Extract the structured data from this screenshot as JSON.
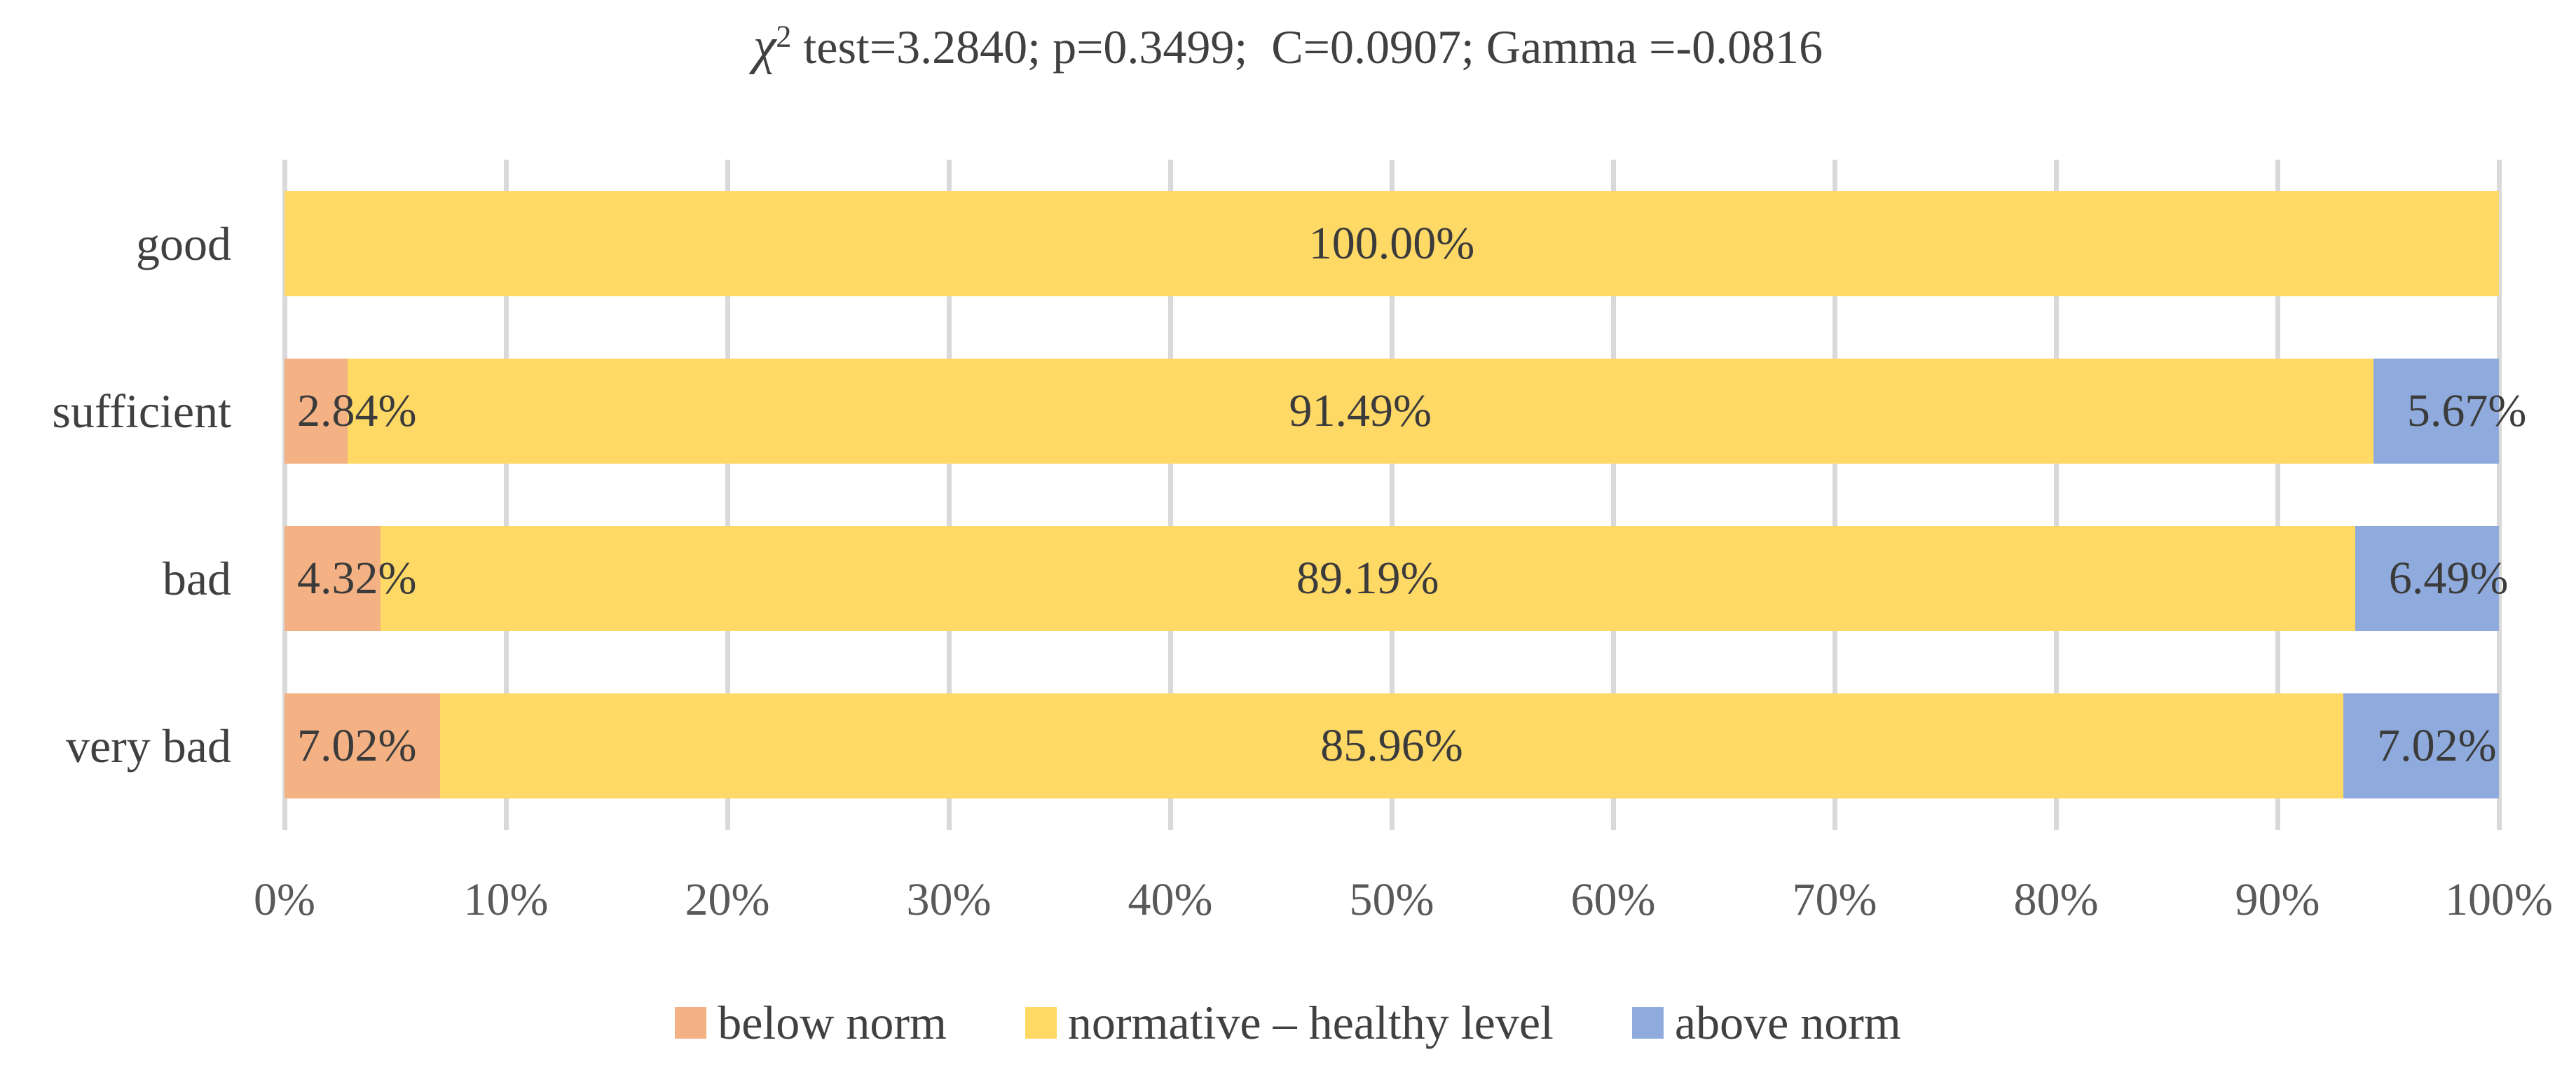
{
  "title": {
    "chi": "χ",
    "sup": "2",
    "rest": " test=3.2840; p=0.3499;  C=0.0907; Gamma =-0.0816"
  },
  "chart_data": {
    "type": "bar",
    "orientation": "horizontal",
    "stacked": true,
    "stacked_total_percent": 100,
    "title": "χ2 test=3.2840; p=0.3499;  C=0.0907; Gamma =-0.0816",
    "categories": [
      "good",
      "sufficient",
      "bad",
      "very bad"
    ],
    "series": [
      {
        "name": "below norm",
        "color": "#F4B183",
        "values": [
          0,
          2.84,
          4.32,
          7.02
        ]
      },
      {
        "name": "normative – healthy level",
        "color": "#FFD966",
        "values": [
          100.0,
          91.49,
          89.19,
          85.96
        ]
      },
      {
        "name": "above norm",
        "color": "#8FAADC",
        "values": [
          0,
          5.67,
          6.49,
          7.02
        ]
      }
    ],
    "data_labels": [
      [
        "",
        "100.00%",
        ""
      ],
      [
        "2.84%",
        "91.49%",
        "5.67%"
      ],
      [
        "4.32%",
        "89.19%",
        "6.49%"
      ],
      [
        "7.02%",
        "85.96%",
        "7.02%"
      ]
    ],
    "x_axis": {
      "min": 0,
      "max": 100,
      "tick_step": 10,
      "tick_labels": [
        "0%",
        "10%",
        "20%",
        "30%",
        "40%",
        "50%",
        "60%",
        "70%",
        "80%",
        "90%",
        "100%"
      ],
      "grid": true
    },
    "legend": {
      "position": "bottom",
      "entries": [
        "below norm",
        "normative – healthy level",
        "above norm"
      ]
    }
  },
  "colors": {
    "grid": "#D9D9D9",
    "title_text": "#404040",
    "category_text": "#404040",
    "axis_text": "#595959",
    "data_label_text": "#3B3B3B",
    "background": "#FFFFFF"
  }
}
